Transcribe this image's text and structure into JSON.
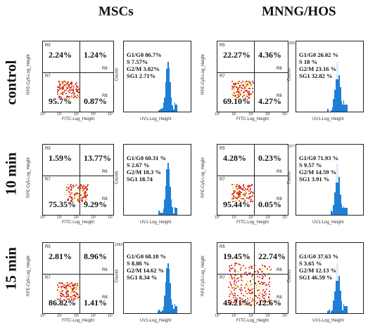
{
  "columns": {
    "left": "MSCs",
    "right": "MNNG/HOS"
  },
  "rows": [
    "control",
    "10 min",
    "15 min"
  ],
  "axis_labels": {
    "scatter_x": "FITC-Log_Height",
    "scatter_y": "RPE-Cy5-Log_Height",
    "hist_x": "UV1-Log_Height",
    "hist_y": "Counts"
  },
  "region_labels": {
    "r5": "R5",
    "r6": "R6",
    "r7": "R7",
    "r8": "R8"
  },
  "ticks": [
    "10⁰",
    "10¹",
    "10²",
    "10³",
    "10⁴"
  ],
  "panels": [
    {
      "id": "msc-control",
      "q": [
        "2.24%",
        "1.24%",
        "95.7%",
        "0.87%"
      ],
      "stats": [
        "G1/G0 86.7%",
        "S 7.57%",
        "G2/M 3.02%",
        "SG1 2.71%"
      ],
      "hist_max": ""
    },
    {
      "id": "hos-control",
      "q": [
        "22.27%",
        "4.36%",
        "69.10%",
        "4.27%"
      ],
      "stats": [
        "G1/G0 26.02 %",
        "S 18 %",
        "G2/M 23.16 %",
        "SG1 32.82 %"
      ],
      "hist_max": "1200"
    },
    {
      "id": "msc-10",
      "q": [
        "1.59%",
        "13.77%",
        "75.35%",
        "9.29%"
      ],
      "stats": [
        "G1/G0 60.31 %",
        "S 2.67 %",
        "G2/M 18.3 %",
        "SG1 18.74"
      ],
      "hist_max": ""
    },
    {
      "id": "hos-10",
      "q": [
        "4.28%",
        "0.23%",
        "95.44%",
        "0.05%"
      ],
      "stats": [
        "G1/G0 71.93 %",
        "S 9.57 %",
        "G2/M 14.59 %",
        "SG1 3.91 %"
      ],
      "hist_max": "1677"
    },
    {
      "id": "msc-15",
      "q": [
        "2.81%",
        "8.96%",
        "86.82%",
        "1.41%"
      ],
      "stats": [
        "G1/G0 68.18 %",
        "S 8.86 %",
        "G2/M 14.62 %",
        "SG1 8.34 %"
      ],
      "hist_max": "1083"
    },
    {
      "id": "hos-15",
      "q": [
        "19.45%",
        "22.74%",
        "45.21%",
        "12.6%"
      ],
      "stats": [
        "G1/G0 37.63 %",
        "S 3.65 %",
        "G2/M 12.13 %",
        "SG1 46.59 %"
      ],
      "hist_max": ""
    }
  ]
}
